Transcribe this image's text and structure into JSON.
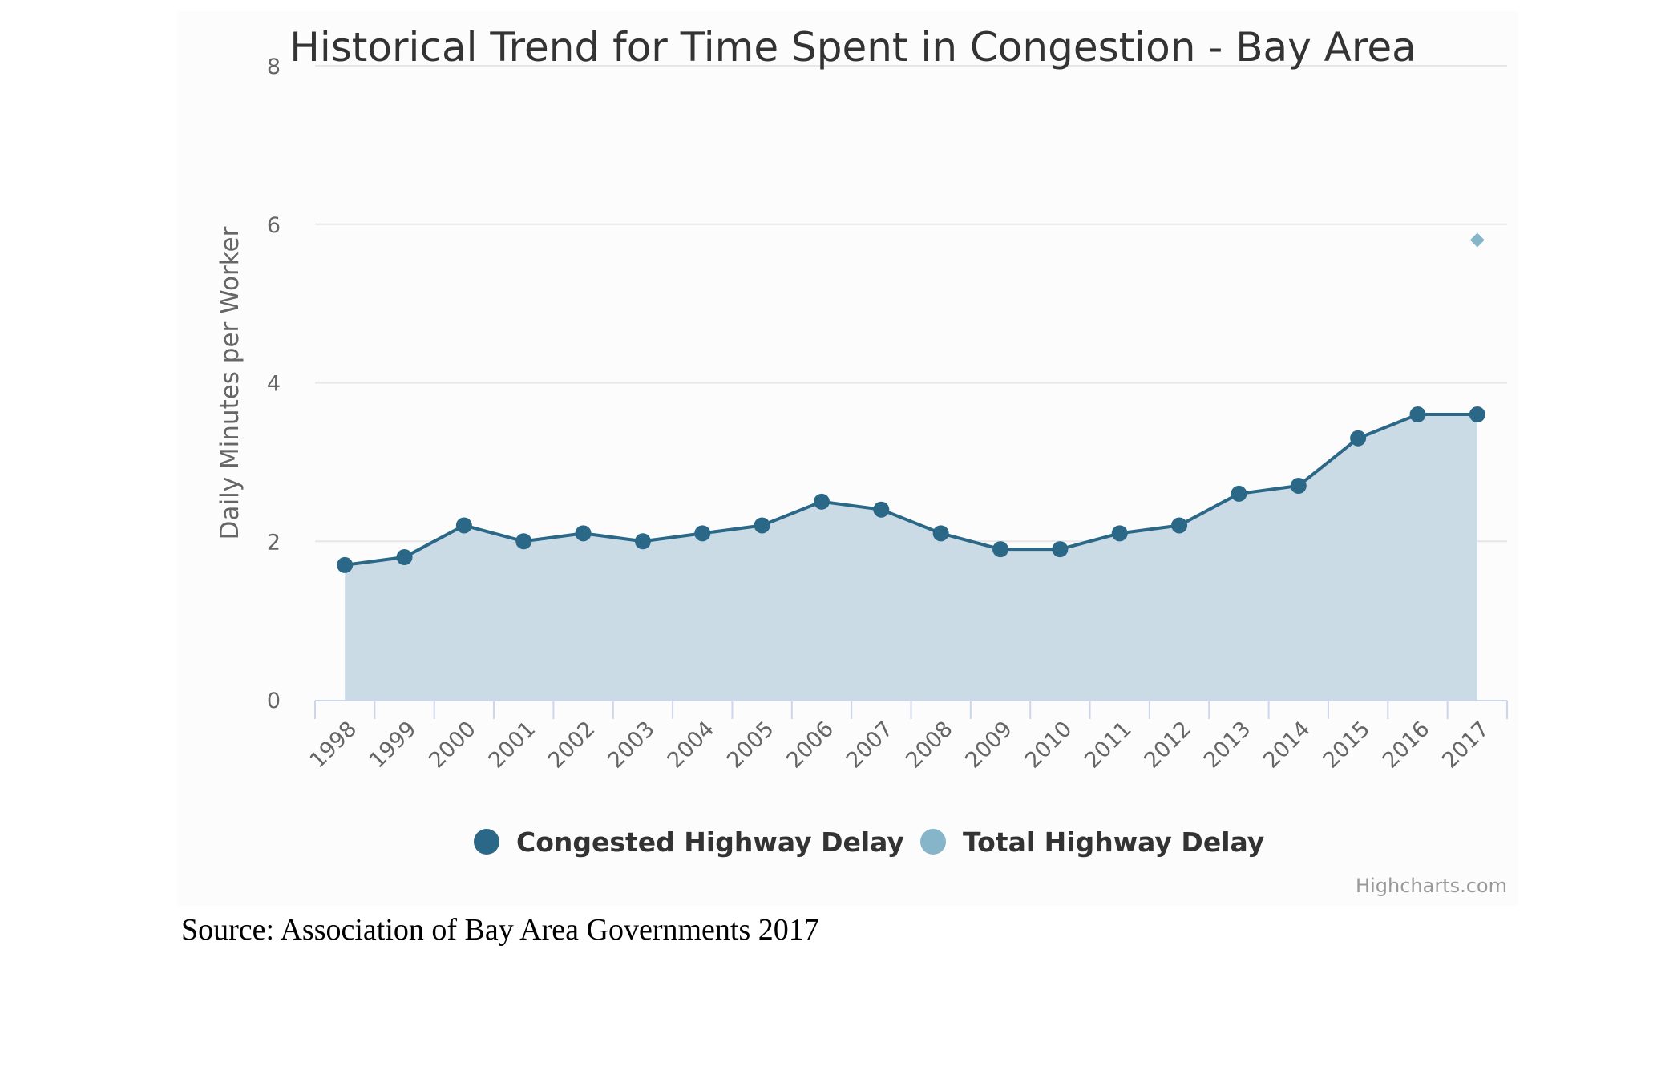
{
  "chart_data": {
    "type": "area",
    "title": "Historical Trend for Time Spent in Congestion - Bay Area",
    "ylabel": "Daily Minutes per Worker",
    "xlabel": "",
    "ylim": [
      0,
      8
    ],
    "yticks": [
      "0",
      "2",
      "4",
      "6",
      "8"
    ],
    "grid": true,
    "categories": [
      "1998",
      "1999",
      "2000",
      "2001",
      "2002",
      "2003",
      "2004",
      "2005",
      "2006",
      "2007",
      "2008",
      "2009",
      "2010",
      "2011",
      "2012",
      "2013",
      "2014",
      "2015",
      "2016",
      "2017"
    ],
    "series": [
      {
        "name": "Congested Highway Delay",
        "type": "area",
        "color": "#2b6887",
        "fill": "#cbdbe6",
        "values": [
          1.7,
          1.8,
          2.2,
          2.0,
          2.1,
          2.0,
          2.1,
          2.2,
          2.5,
          2.4,
          2.1,
          1.9,
          1.9,
          2.1,
          2.2,
          2.6,
          2.7,
          3.3,
          3.6,
          3.6
        ]
      },
      {
        "name": "Total Highway Delay",
        "type": "scatter",
        "marker": "diamond",
        "color": "#86b4c9",
        "values": [
          null,
          null,
          null,
          null,
          null,
          null,
          null,
          null,
          null,
          null,
          null,
          null,
          null,
          null,
          null,
          null,
          null,
          null,
          null,
          5.8
        ]
      }
    ],
    "legend_position": "bottom-center",
    "credits": "Highcharts.com"
  },
  "source_note": "Source: Association of Bay Area Governments 2017"
}
